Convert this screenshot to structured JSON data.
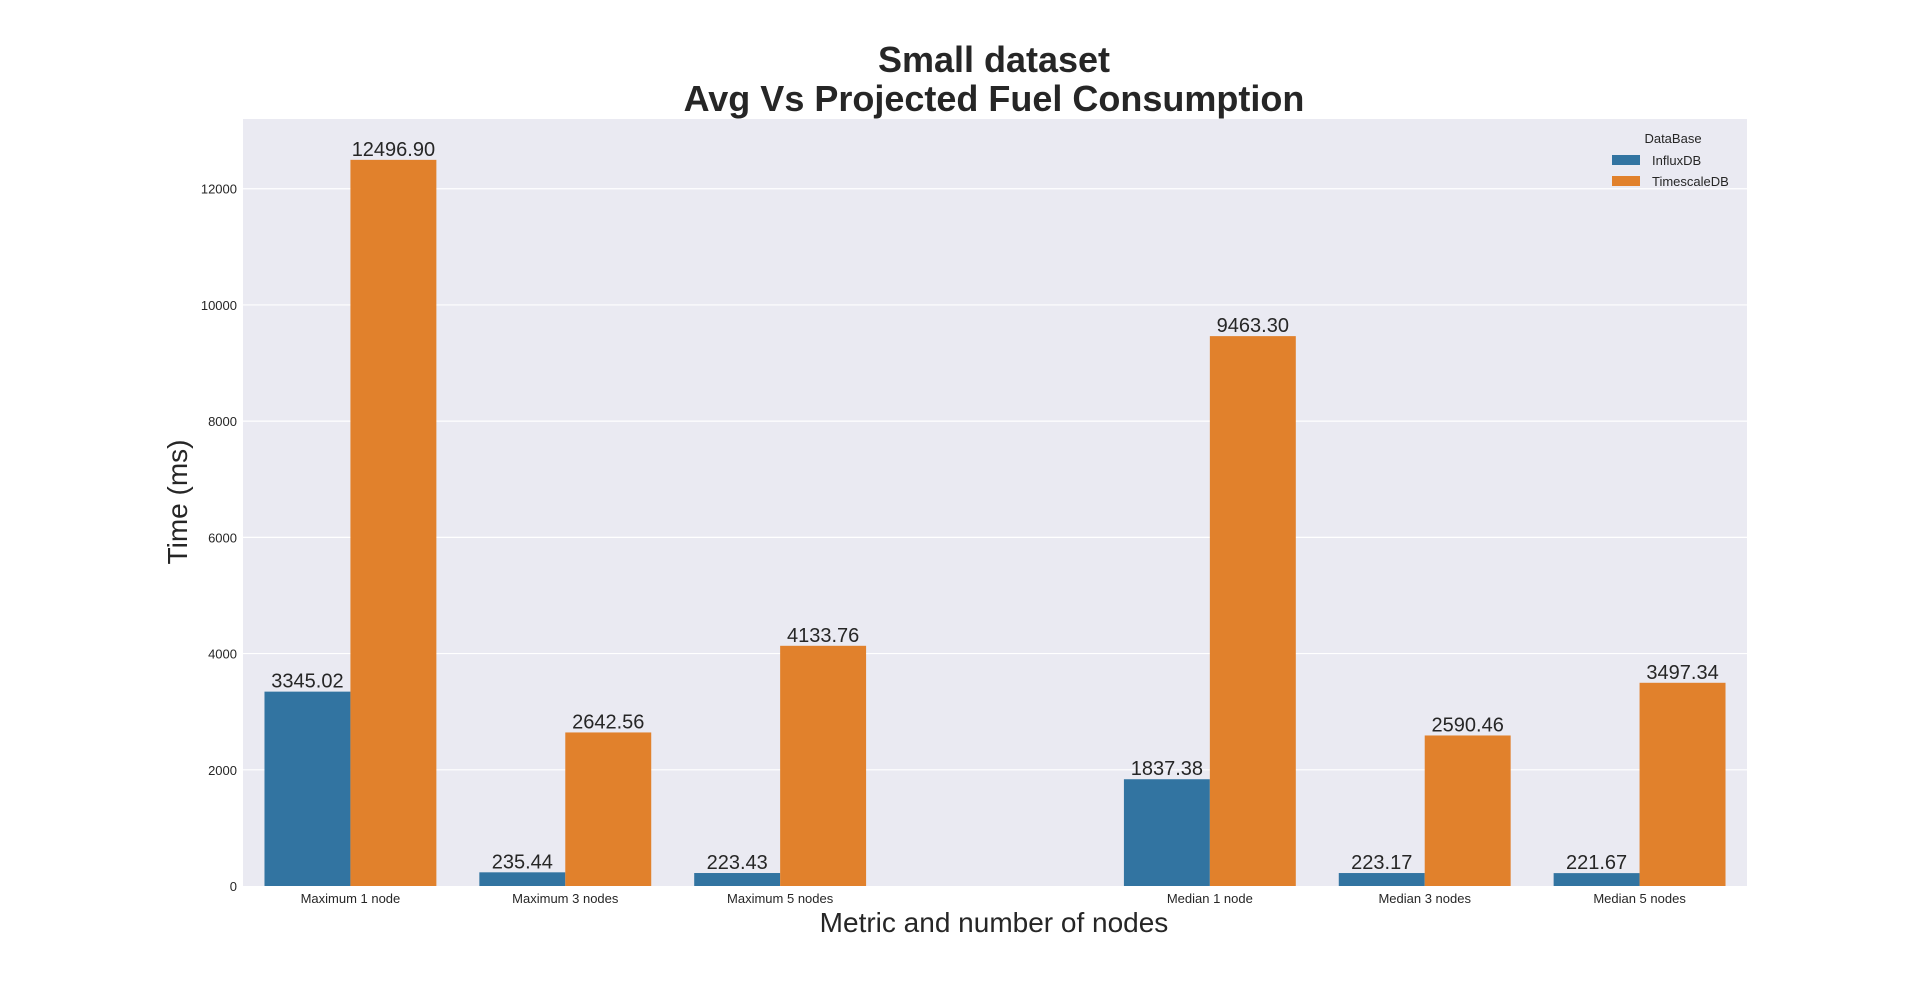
{
  "chart_data": {
    "type": "bar",
    "title": [
      "Small dataset",
      "Avg Vs Projected Fuel Consumption"
    ],
    "xlabel": "Metric and number of nodes",
    "ylabel": "Time (ms)",
    "categories": [
      "Maximum 1 node",
      "Maximum 3 nodes",
      "Maximum 5 nodes",
      "",
      "Median 1 node",
      "Median 3 nodes",
      "Median 5 nodes"
    ],
    "series": [
      {
        "name": "InfluxDB",
        "color": "#3274a1",
        "values": [
          3345.02,
          235.44,
          223.43,
          null,
          1837.38,
          223.17,
          221.67
        ],
        "labels": [
          "3345.02",
          "235.44",
          "223.43",
          "",
          "1837.38",
          "223.17",
          "221.67"
        ]
      },
      {
        "name": "TimescaleDB",
        "color": "#e1812c",
        "values": [
          12496.9,
          2642.56,
          4133.76,
          null,
          9463.3,
          2590.46,
          3497.34
        ],
        "labels": [
          "12496.90",
          "2642.56",
          "4133.76",
          "",
          "9463.30",
          "2590.46",
          "3497.34"
        ]
      }
    ],
    "ylim": [
      0,
      13200
    ],
    "yticks": [
      0,
      2000,
      4000,
      6000,
      8000,
      10000,
      12000
    ],
    "ytick_labels": [
      "0",
      "2000",
      "4000",
      "6000",
      "8000",
      "10000",
      "12000"
    ],
    "grid": true,
    "background": "#eaeaf2",
    "legend": {
      "title": "DataBase",
      "placement": "top-right"
    }
  }
}
